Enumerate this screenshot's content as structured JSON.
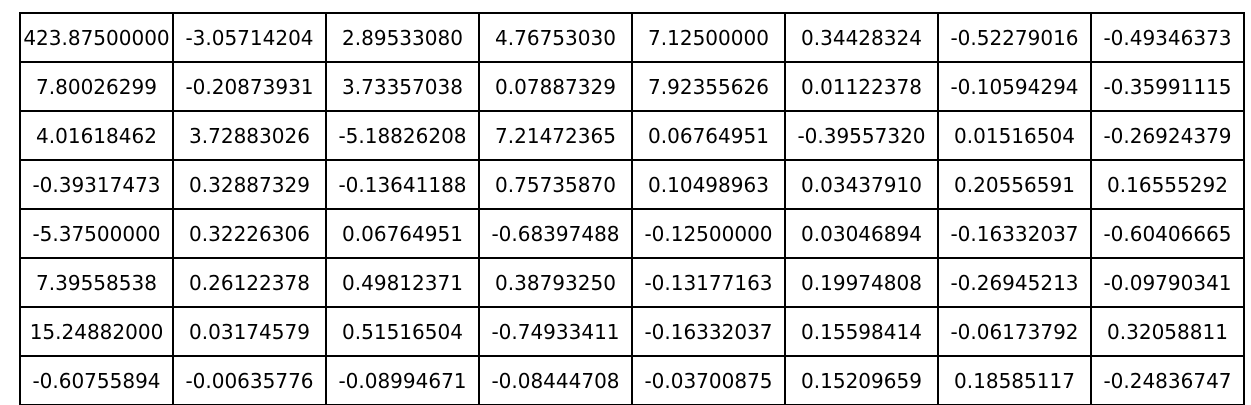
{
  "table": {
    "rows": [
      [
        "423.87500000",
        "-3.05714204",
        "2.89533080",
        "4.76753030",
        "7.12500000",
        "0.34428324",
        "-0.52279016",
        "-0.49346373"
      ],
      [
        "7.80026299",
        "-0.20873931",
        "3.73357038",
        "0.07887329",
        "7.92355626",
        "0.01122378",
        "-0.10594294",
        "-0.35991115"
      ],
      [
        "4.01618462",
        "3.72883026",
        "-5.18826208",
        "7.21472365",
        "0.06764951",
        "-0.39557320",
        "0.01516504",
        "-0.26924379"
      ],
      [
        "-0.39317473",
        "0.32887329",
        "-0.13641188",
        "0.75735870",
        "0.10498963",
        "0.03437910",
        "0.20556591",
        "0.16555292"
      ],
      [
        "-5.37500000",
        "0.32226306",
        "0.06764951",
        "-0.68397488",
        "-0.12500000",
        "0.03046894",
        "-0.16332037",
        "-0.60406665"
      ],
      [
        "7.39558538",
        "0.26122378",
        "0.49812371",
        "0.38793250",
        "-0.13177163",
        "0.19974808",
        "-0.26945213",
        "-0.09790341"
      ],
      [
        "15.24882000",
        "0.03174579",
        "0.51516504",
        "-0.74933411",
        "-0.16332037",
        "0.15598414",
        "-0.06173792",
        "0.32058811"
      ],
      [
        "-0.60755894",
        "-0.00635776",
        "-0.08994671",
        "-0.08444708",
        "-0.03700875",
        "0.15209659",
        "0.18585117",
        "-0.24836747"
      ]
    ]
  }
}
